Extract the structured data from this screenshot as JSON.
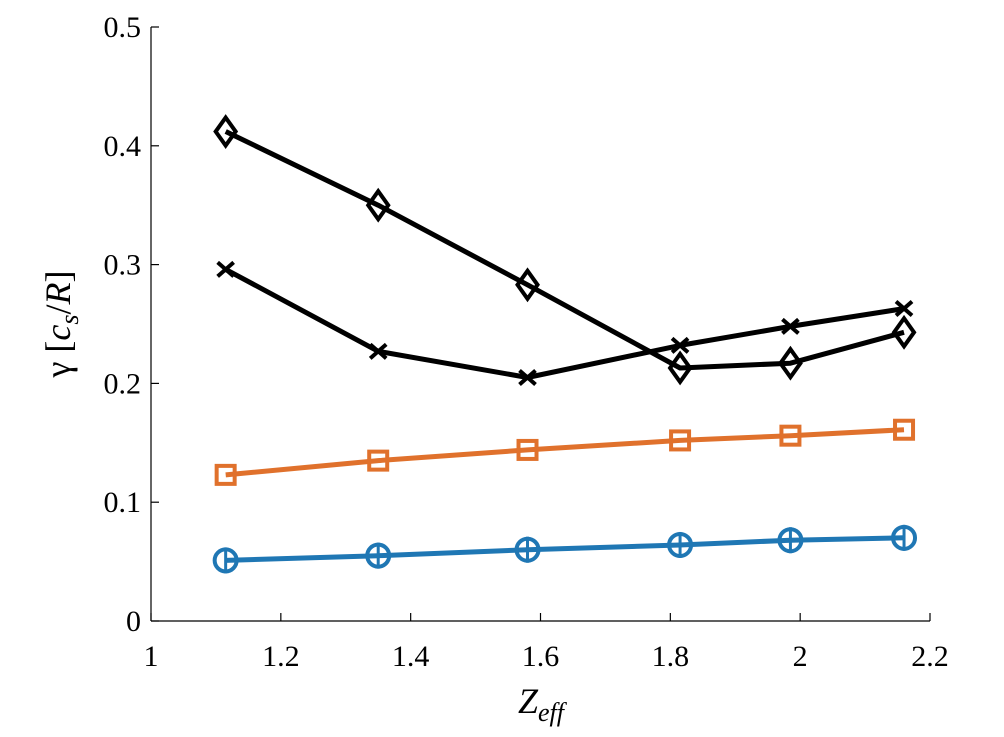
{
  "chart_data": {
    "type": "line",
    "title": "",
    "xlabel": "Z",
    "xlabel_sub": "eff",
    "ylabel_parts": {
      "gamma": "γ",
      "open": " [",
      "c": "c",
      "sub": "s",
      "slash": "/",
      "R": "R",
      "close": "]"
    },
    "xlim": [
      1,
      2.2
    ],
    "ylim": [
      0,
      0.5
    ],
    "xticks": [
      1,
      1.2,
      1.4,
      1.6,
      1.8,
      2,
      2.2
    ],
    "xtick_labels": [
      "1",
      "1.2",
      "1.4",
      "1.6",
      "1.8",
      "2",
      "2.2"
    ],
    "yticks": [
      0,
      0.1,
      0.2,
      0.3,
      0.4,
      0.5
    ],
    "ytick_labels": [
      "0",
      "0.1",
      "0.2",
      "0.3",
      "0.4",
      "0.5"
    ],
    "grid": false,
    "x": [
      1.115,
      1.35,
      1.58,
      1.815,
      1.985,
      2.16
    ],
    "series": [
      {
        "name": "diamond-series",
        "marker": "diamond",
        "color": "#000000",
        "values": [
          0.412,
          0.35,
          0.283,
          0.213,
          0.217,
          0.243
        ]
      },
      {
        "name": "cross-series",
        "marker": "x",
        "color": "#000000",
        "values": [
          0.296,
          0.227,
          0.205,
          0.232,
          0.248,
          0.263
        ]
      },
      {
        "name": "square-series",
        "marker": "square",
        "color": "#E0712C",
        "values": [
          0.123,
          0.135,
          0.144,
          0.152,
          0.156,
          0.161
        ]
      },
      {
        "name": "circle-series",
        "marker": "circle",
        "color": "#1F77B4",
        "values": [
          0.051,
          0.055,
          0.06,
          0.064,
          0.068,
          0.07
        ]
      }
    ]
  }
}
